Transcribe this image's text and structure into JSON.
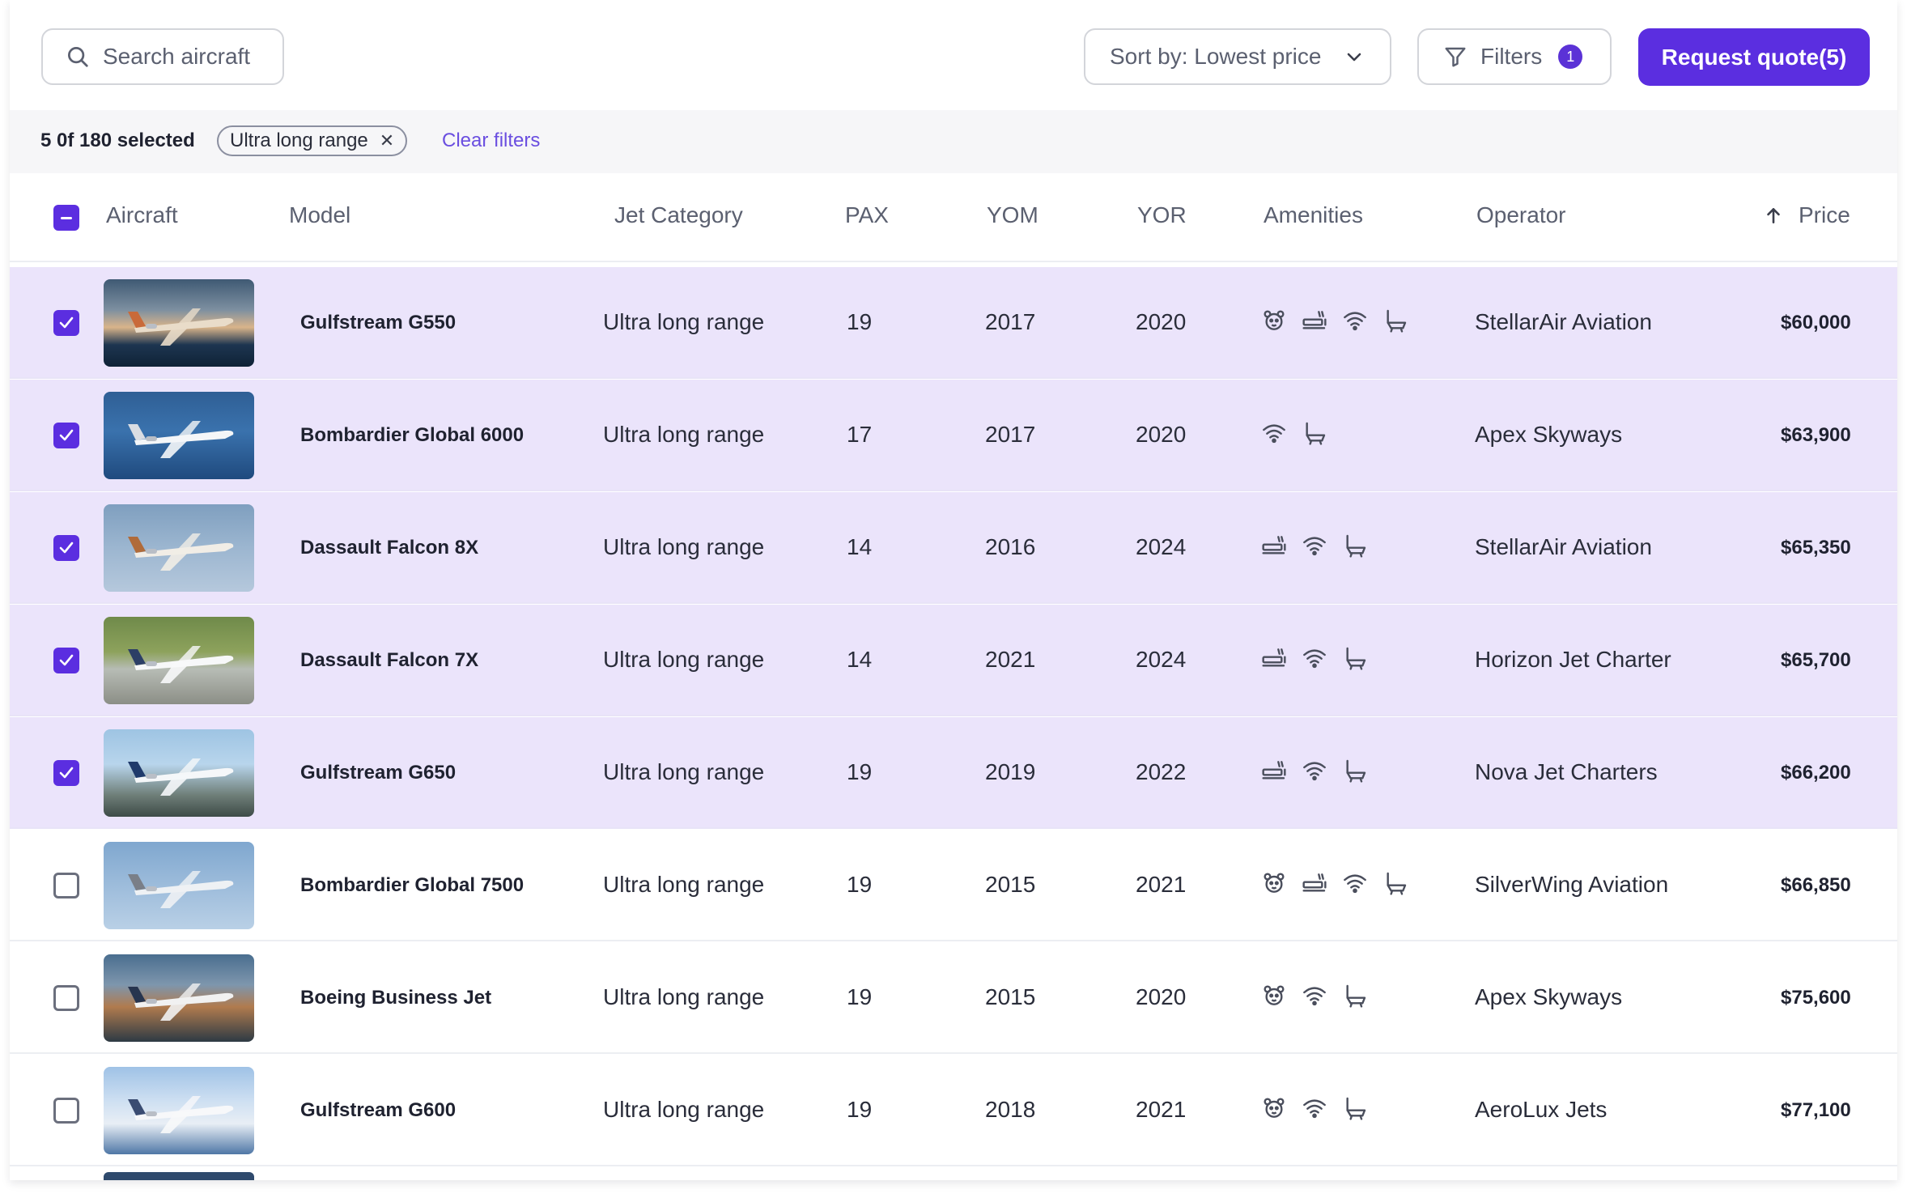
{
  "toolbar": {
    "search_placeholder": "Search aircraft",
    "sort_label": "Sort by: Lowest price",
    "filters_label": "Filters",
    "filters_count": "1",
    "quote_label": "Request quote(5)"
  },
  "filterbar": {
    "selection": "5 0f 180 selected",
    "active_filter": "Ultra long range",
    "clear_label": "Clear filters"
  },
  "columns": {
    "aircraft": "Aircraft",
    "model": "Model",
    "category": "Jet Category",
    "pax": "PAX",
    "yom": "YOM",
    "yor": "YOR",
    "amenities": "Amenities",
    "operator": "Operator",
    "price": "Price"
  },
  "rows": [
    {
      "selected": true,
      "model": "Gulfstream G550",
      "category": "Ultra long range",
      "pax": "19",
      "yom": "2017",
      "yor": "2020",
      "amenities": [
        "pet-icon",
        "bed-icon",
        "wifi-icon",
        "lavatory-icon"
      ],
      "operator": "StellarAir Aviation",
      "price": "$60,000",
      "img": "sunset"
    },
    {
      "selected": true,
      "model": "Bombardier Global 6000",
      "category": "Ultra long range",
      "pax": "17",
      "yom": "2017",
      "yor": "2020",
      "amenities": [
        "wifi-icon",
        "lavatory-icon"
      ],
      "operator": "Apex Skyways",
      "price": "$63,900",
      "img": "blue"
    },
    {
      "selected": true,
      "model": "Dassault Falcon 8X",
      "category": "Ultra long range",
      "pax": "14",
      "yom": "2016",
      "yor": "2024",
      "amenities": [
        "bed-icon",
        "wifi-icon",
        "lavatory-icon"
      ],
      "operator": "StellarAir Aviation",
      "price": "$65,350",
      "img": "sky"
    },
    {
      "selected": true,
      "model": "Dassault Falcon 7X",
      "category": "Ultra long range",
      "pax": "14",
      "yom": "2021",
      "yor": "2024",
      "amenities": [
        "bed-icon",
        "wifi-icon",
        "lavatory-icon"
      ],
      "operator": "Horizon Jet Charter",
      "price": "$65,700",
      "img": "ground"
    },
    {
      "selected": true,
      "model": "Gulfstream G650",
      "category": "Ultra long range",
      "pax": "19",
      "yom": "2019",
      "yor": "2022",
      "amenities": [
        "bed-icon",
        "wifi-icon",
        "lavatory-icon"
      ],
      "operator": "Nova Jet Charters",
      "price": "$66,200",
      "img": "coast"
    },
    {
      "selected": false,
      "model": "Bombardier Global 7500",
      "category": "Ultra long range",
      "pax": "19",
      "yom": "2015",
      "yor": "2021",
      "amenities": [
        "pet-icon",
        "bed-icon",
        "wifi-icon",
        "lavatory-icon"
      ],
      "operator": "SilverWing Aviation",
      "price": "$66,850",
      "img": "sky2"
    },
    {
      "selected": false,
      "model": "Boeing Business Jet",
      "category": "Ultra long range",
      "pax": "19",
      "yom": "2015",
      "yor": "2020",
      "amenities": [
        "pet-icon",
        "wifi-icon",
        "lavatory-icon"
      ],
      "operator": "Apex Skyways",
      "price": "$75,600",
      "img": "mountain"
    },
    {
      "selected": false,
      "model": "Gulfstream G600",
      "category": "Ultra long range",
      "pax": "19",
      "yom": "2018",
      "yor": "2021",
      "amenities": [
        "pet-icon",
        "wifi-icon",
        "lavatory-icon"
      ],
      "operator": "AeroLux Jets",
      "price": "$77,100",
      "img": "clouds"
    }
  ],
  "colors": {
    "accent": "#5b2ee0",
    "selected_row": "#ebe4fb",
    "text": "#1f2230",
    "muted": "#5b6070"
  }
}
